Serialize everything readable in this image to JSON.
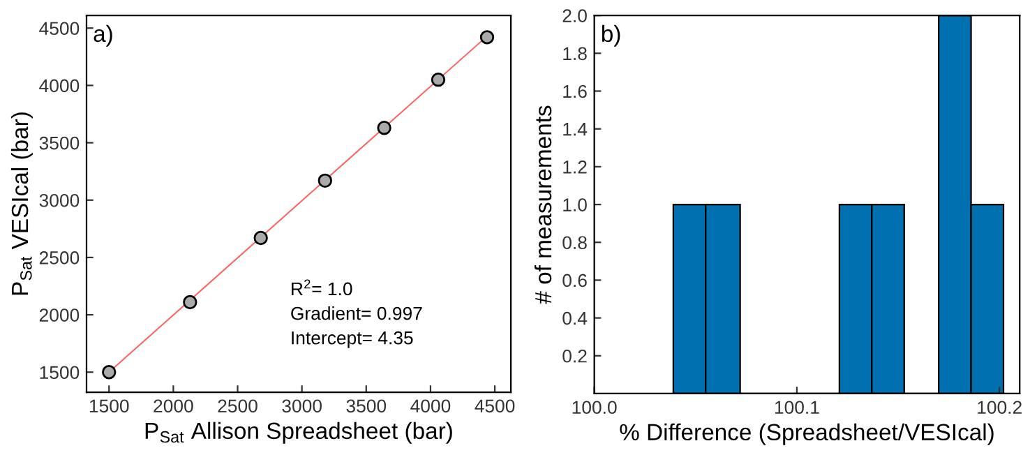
{
  "chart_data": [
    {
      "type": "scatter",
      "xlabel": "P$_{Sat}$ Allison Spreadsheet (bar)",
      "ylabel": "P$_{Sat}$ VESIcal (bar)",
      "x": [
        1500,
        2130,
        2680,
        3180,
        3640,
        4060,
        4440
      ],
      "series": [
        {
          "type": "scatter",
          "color": "#aaaaaa",
          "values": [
            1500,
            2110,
            2670,
            3170,
            3630,
            4050,
            4420
          ],
          "marker": "circle"
        },
        {
          "type": "line",
          "color": "#ff6060",
          "x": [
            1500,
            4440
          ],
          "values": [
            1500,
            4430
          ]
        }
      ],
      "xlim": [
        1325,
        4625
      ],
      "ylim": [
        1325,
        4610
      ],
      "xticks": [
        1500,
        2000,
        2500,
        3000,
        3500,
        4000,
        4500
      ],
      "yticks": [
        1500,
        2000,
        2500,
        3000,
        3500,
        4000,
        4500
      ],
      "annotations": [
        "a)",
        "R$^{2}$= 1.0",
        "Gradient= 0.997",
        "Intercept= 4.35"
      ],
      "grid": false
    },
    {
      "type": "histogram",
      "xlabel": "% Difference (Spreadsheet/VESIcal)",
      "ylabel": "# of measurements",
      "color": "#0070b0",
      "bins": [
        100.039,
        100.055,
        100.072,
        100.121,
        100.137,
        100.153,
        100.17,
        100.186,
        100.202
      ],
      "values": [
        1,
        1,
        0,
        1,
        1,
        0,
        2,
        1
      ],
      "xlim": [
        100.0,
        100.21
      ],
      "ylim": [
        0,
        2.0
      ],
      "xticks": [
        {
          "value": 100.0,
          "label": "100.0"
        },
        {
          "value": 100.1,
          "label": "100.1"
        },
        {
          "value": 100.2,
          "label": "100.2"
        }
      ],
      "yticks": [
        {
          "value": 0.2,
          "label": "0.2"
        },
        {
          "value": 0.4,
          "label": "0.4"
        },
        {
          "value": 0.6,
          "label": "0.6"
        },
        {
          "value": 0.8,
          "label": "0.8"
        },
        {
          "value": 1.0,
          "label": "1.0"
        },
        {
          "value": 1.2,
          "label": "1.2"
        },
        {
          "value": 1.4,
          "label": "1.4"
        },
        {
          "value": 1.6,
          "label": "1.6"
        },
        {
          "value": 1.8,
          "label": "1.8"
        },
        {
          "value": 2.0,
          "label": "2.0"
        }
      ],
      "annotations": [
        "b)"
      ],
      "grid": false
    }
  ]
}
